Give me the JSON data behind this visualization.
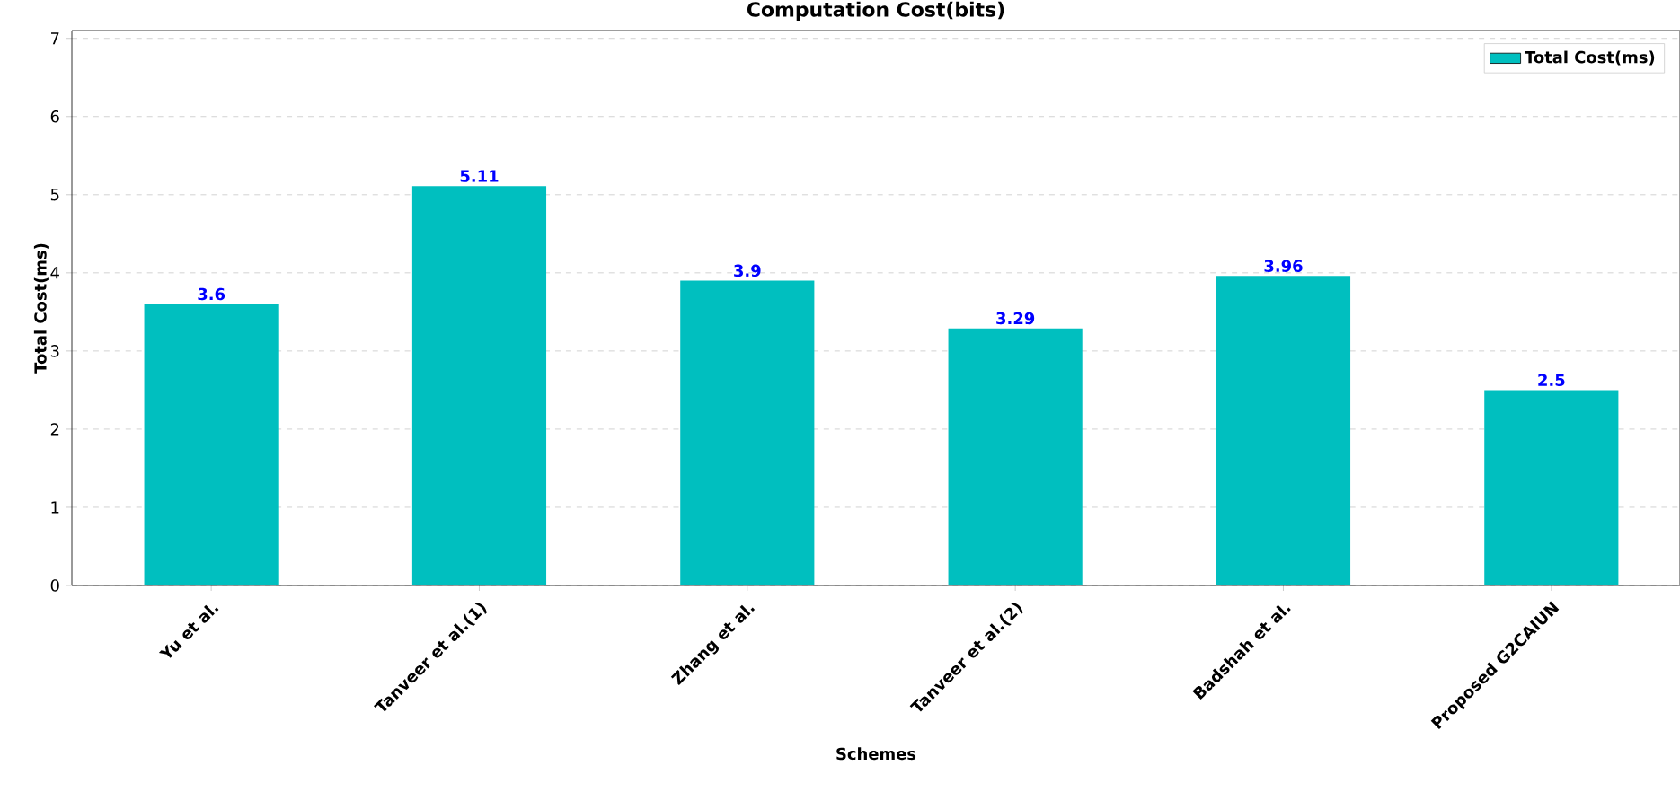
{
  "chart_data": {
    "type": "bar",
    "title": "Computation Cost(bits)",
    "xlabel": "Schemes",
    "ylabel": "Total Cost(ms)",
    "categories": [
      "Yu et al.",
      "Tanveer et al.(1)",
      "Zhang et al.",
      "Tanveer et al.(2)",
      "Badshah et al.",
      "Proposed G2CAIUN"
    ],
    "series": [
      {
        "name": "Total Cost(ms)",
        "color": "#00bfbf",
        "values": [
          3.6,
          5.11,
          3.9,
          3.29,
          3.96,
          2.5
        ]
      }
    ],
    "data_labels": true,
    "ylim": [
      0,
      7.1
    ],
    "yticks": [
      0,
      1,
      2,
      3,
      4,
      5,
      6,
      7
    ],
    "grid": "y",
    "legend": "top right"
  }
}
